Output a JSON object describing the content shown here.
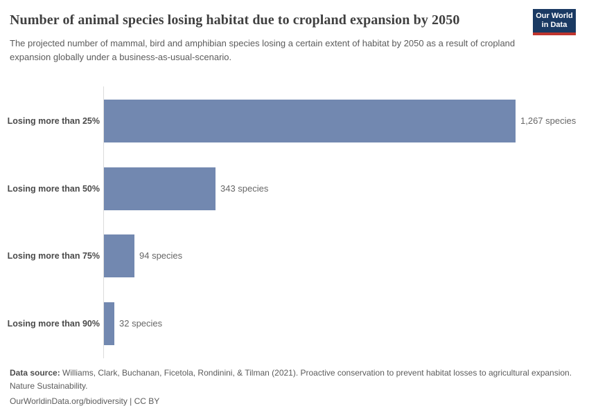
{
  "header": {
    "title": "Number of animal species losing habitat due to cropland expansion by 2050",
    "subtitle": "The projected number of mammal, bird and amphibian species losing a certain extent of habitat by 2050 as a result of cropland expansion globally under a business-as-usual-scenario.",
    "logo": {
      "line1": "Our World",
      "line2": "in Data",
      "bg_color": "#1a3a63",
      "accent_color": "#c0352e"
    }
  },
  "chart_data": {
    "type": "bar",
    "orientation": "horizontal",
    "title": "Number of animal species losing habitat due to cropland expansion by 2050",
    "categories": [
      "Losing more than 25%",
      "Losing more than 50%",
      "Losing more than 75%",
      "Losing more than 90%"
    ],
    "values": [
      1267,
      343,
      94,
      32
    ],
    "value_labels": [
      "1,267 species",
      "343 species",
      "94 species",
      "32 species"
    ],
    "unit": "species",
    "xlabel": "",
    "ylabel": "",
    "xlim": [
      0,
      1267
    ],
    "grid": false,
    "legend": "none",
    "bar_color": "#7288b0"
  },
  "footer": {
    "source_label": "Data source:",
    "source_text": " Williams, Clark, Buchanan, Ficetola, Rondinini, & Tilman (2021). Proactive conservation to prevent habitat losses to agricultural expansion. Nature Sustainability.",
    "note": "OurWorldinData.org/biodiversity | CC BY"
  }
}
